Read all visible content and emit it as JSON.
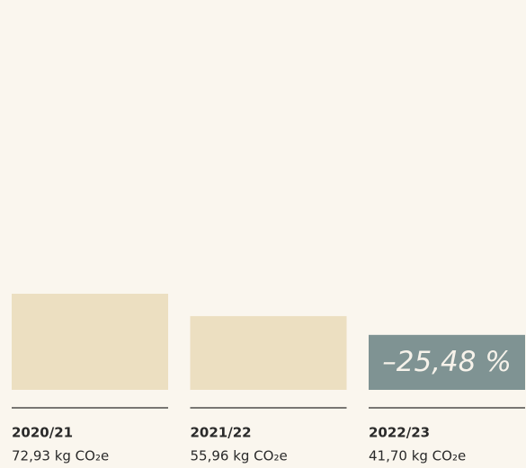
{
  "chart_data": {
    "type": "bar",
    "categories": [
      "2020/21",
      "2021/22",
      "2022/23"
    ],
    "values": [
      72.93,
      55.96,
      41.7
    ],
    "value_labels": [
      "72,93 kg CO₂e",
      "55,96 kg CO₂e",
      "41,70 kg CO₂e"
    ],
    "colors": [
      "#ecdfc1",
      "#ecdfc1",
      "#7f9393"
    ],
    "annotation": "–25,48 %"
  }
}
